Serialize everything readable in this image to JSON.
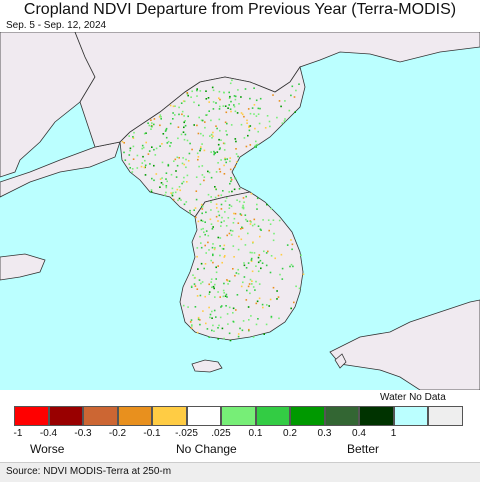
{
  "header": {
    "title": "Cropland NDVI Departure from Previous Year (Terra-MODIS)",
    "date_range": "Sep. 5 - Sep. 12, 2024"
  },
  "legend": {
    "no_data_label": "Water No Data",
    "classes": [
      {
        "color": "#ff0000",
        "label": "-1"
      },
      {
        "color": "#990000",
        "label": "-0.4"
      },
      {
        "color": "#cc6633",
        "label": "-0.3"
      },
      {
        "color": "#e8901e",
        "label": "-0.2"
      },
      {
        "color": "#ffcc44",
        "label": "-0.1"
      },
      {
        "color": "#ffffff",
        "label": "-.025"
      },
      {
        "color": "#77ee77",
        "label": ".025"
      },
      {
        "color": "#33cc44",
        "label": "0.1"
      },
      {
        "color": "#009900",
        "label": "0.2"
      },
      {
        "color": "#336633",
        "label": "0.3"
      },
      {
        "color": "#003300",
        "label": "0.4"
      },
      {
        "color": "#bbffff",
        "label": "1"
      },
      {
        "color": "#eeeeee",
        "label": ""
      }
    ],
    "categories": {
      "worse": "Worse",
      "no_change": "No Change",
      "better": "Better"
    }
  },
  "footer": {
    "source": "Source: NDVI MODIS-Terra at 250-m"
  },
  "map": {
    "water_color": "#bbffff",
    "land_color": "#f0eaf0"
  }
}
